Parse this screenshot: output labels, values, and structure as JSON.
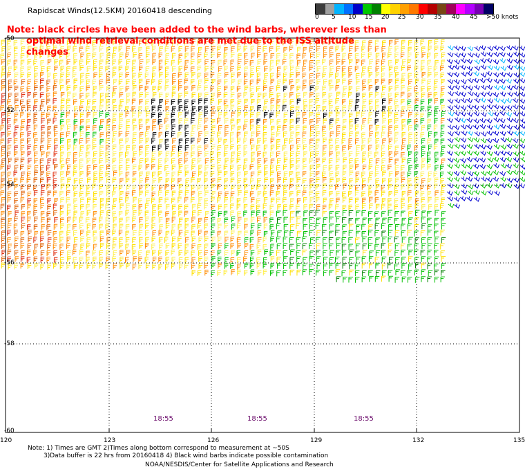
{
  "header": {
    "title": "Rapidscat Winds(12.5KM) 20160418 descending",
    "note_line1": "Note: black circles have been added to the wind barbs, wherever less than",
    "note_line2": "optimal wind retrieval conditions are met due to the ISS altitude changes"
  },
  "legend": {
    "labels": [
      "0",
      "5",
      "10",
      "15",
      "20",
      "25",
      "30",
      "35",
      "40",
      "45",
      ">50 knots"
    ],
    "colors": [
      "#3c3c3c",
      "#a0a0a0",
      "#00b4ff",
      "#0070ff",
      "#0000c8",
      "#00c800",
      "#008000",
      "#ffff00",
      "#ffd200",
      "#ffa000",
      "#ff7800",
      "#ff0000",
      "#b40000",
      "#784614",
      "#a0005a",
      "#ff00ff",
      "#b400ff",
      "#7800b4",
      "#000064"
    ]
  },
  "map": {
    "lat_labels": [
      "-50",
      "-52",
      "-54",
      "-56",
      "-58",
      "-60"
    ],
    "lon_labels": [
      "120",
      "123",
      "126",
      "129",
      "132",
      "135"
    ],
    "time_labels": [
      "18:55",
      "18:55",
      "18:55"
    ],
    "barb_palette": {
      "orange": "#ff8c00",
      "dark_orange": "#e06000",
      "red": "#e03010",
      "yellow": "#ffe000",
      "light_yellow": "#ffee44",
      "green": "#00c000",
      "dark_green": "#008000",
      "blue": "#0000d0",
      "cyan": "#00b4ff",
      "black": "#000000"
    }
  },
  "footer": {
    "line1": "Note: 1) Times are GMT 2)Times along bottom correspond to measurement at ~50S",
    "line2": "3)Data buffer is 22 hrs from 20160418 4) Black wind barbs indicate possible contamination",
    "line3": "NOAA/NESDIS/Center for Satellite Applications and Research"
  }
}
